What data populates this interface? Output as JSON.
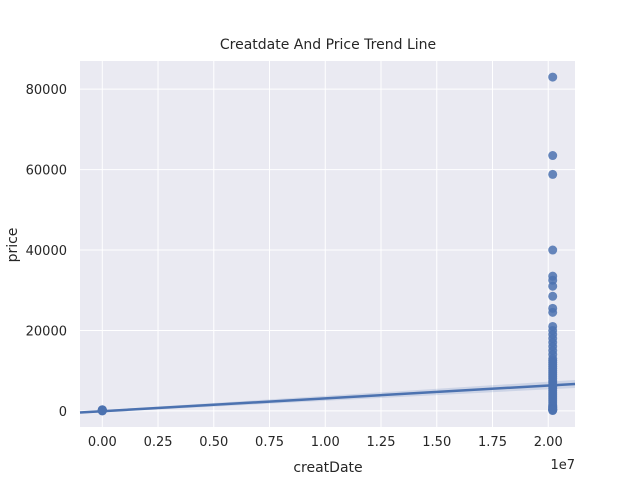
{
  "chart_data": {
    "type": "scatter",
    "title": "Creatdate And Price Trend Line",
    "xlabel": "creatDate",
    "ylabel": "price",
    "x_offset_label": "1e7",
    "xlim": [
      -0.1,
      2.12
    ],
    "ylim": [
      -4000,
      87000
    ],
    "x_ticks": [
      0.0,
      0.25,
      0.5,
      0.75,
      1.0,
      1.25,
      1.5,
      1.75,
      2.0
    ],
    "x_tick_labels": [
      "0.00",
      "0.25",
      "0.50",
      "0.75",
      "1.00",
      "1.25",
      "1.50",
      "1.75",
      "2.00"
    ],
    "y_ticks": [
      0,
      20000,
      40000,
      60000,
      80000
    ],
    "y_tick_labels": [
      "0",
      "20000",
      "40000",
      "60000",
      "80000"
    ],
    "grid": true,
    "colors": {
      "background": "#eaeaf2",
      "grid": "#ffffff",
      "points": "#4c72b0",
      "trend": "#4c72b0"
    },
    "trend_line": {
      "x": [
        -0.1,
        2.12
      ],
      "y": [
        -400,
        6700
      ]
    },
    "series": [
      {
        "x": [
          0.0,
          0.0,
          0.0,
          0.0,
          0.0,
          0.0,
          0.0,
          0.0,
          2.02,
          2.02,
          2.02,
          2.02,
          2.02,
          2.02,
          2.02,
          2.02,
          2.02,
          2.02,
          2.02,
          2.02,
          2.02,
          2.02,
          2.02,
          2.02,
          2.02,
          2.02,
          2.02,
          2.02,
          2.02,
          2.02,
          2.02,
          2.02,
          2.02,
          2.02,
          2.02,
          2.02,
          2.02,
          2.02,
          2.02,
          2.02,
          2.02,
          2.02,
          2.02,
          2.02,
          2.02,
          2.02,
          2.02,
          2.02,
          2.02,
          2.02,
          2.02,
          2.02,
          2.02,
          2.02,
          2.02,
          2.02,
          2.02,
          2.02
        ],
        "y": [
          0,
          100,
          200,
          300,
          150,
          50,
          250,
          80,
          83000,
          63500,
          58800,
          40000,
          33500,
          32500,
          31000,
          28500,
          25500,
          24500,
          21000,
          20000,
          19000,
          18000,
          17000,
          16000,
          15000,
          14000,
          13000,
          12500,
          12000,
          11500,
          11000,
          10500,
          10000,
          9500,
          9000,
          8500,
          8000,
          7500,
          7000,
          6500,
          6000,
          5500,
          5000,
          4500,
          4000,
          3500,
          3000,
          2500,
          2000,
          1500,
          1200,
          1000,
          800,
          600,
          400,
          300,
          200,
          100
        ]
      }
    ]
  }
}
